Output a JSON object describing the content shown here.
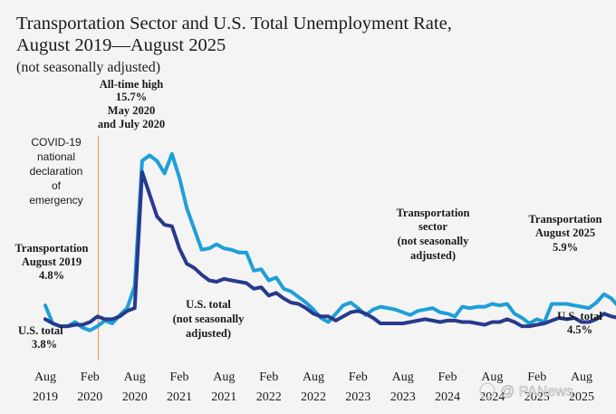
{
  "chart_data": {
    "type": "line",
    "title_lines": [
      "Transportation Sector and U.S. Total Unemployment Rate,",
      "August 2019—August 2025"
    ],
    "subtitle": "(not seasonally adjusted)",
    "x_start": "2019-08",
    "x_end": "2025-08",
    "x_ticks": [
      {
        "month": "Aug",
        "year": "2019"
      },
      {
        "month": "Feb",
        "year": "2020"
      },
      {
        "month": "Aug",
        "year": "2020"
      },
      {
        "month": "Feb",
        "year": "2021"
      },
      {
        "month": "Aug",
        "year": "2021"
      },
      {
        "month": "Feb",
        "year": "2022"
      },
      {
        "month": "Aug",
        "year": "2022"
      },
      {
        "month": "Feb",
        "year": "2023"
      },
      {
        "month": "Aug",
        "year": "2023"
      },
      {
        "month": "Feb",
        "year": "2024"
      },
      {
        "month": "Aug",
        "year": "2024"
      },
      {
        "month": "Feb",
        "year": "2025"
      },
      {
        "month": "Aug",
        "year": "2025"
      }
    ],
    "ylim": [
      2,
      17
    ],
    "grid": false,
    "series": [
      {
        "name": "Transportation sector (not seasonally adjusted)",
        "color": "#1e9fd8",
        "values": [
          4.8,
          3.5,
          3.3,
          3.3,
          3.6,
          3.2,
          3.0,
          3.3,
          3.7,
          3.5,
          4.1,
          4.6,
          6.2,
          15.2,
          15.6,
          15.2,
          14.3,
          15.7,
          14.0,
          11.8,
          10.3,
          8.8,
          8.9,
          9.2,
          8.9,
          8.8,
          8.6,
          8.6,
          7.3,
          7.4,
          6.6,
          6.8,
          6.0,
          5.8,
          5.4,
          5.0,
          4.5,
          3.9,
          3.6,
          4.2,
          4.8,
          5.0,
          4.6,
          4.1,
          4.5,
          4.7,
          4.6,
          4.5,
          4.3,
          4.1,
          4.4,
          4.5,
          4.6,
          4.3,
          4.2,
          4.0,
          4.7,
          4.6,
          4.7,
          4.7,
          4.9,
          4.8,
          4.9,
          4.2,
          3.9,
          3.5,
          3.8,
          3.6,
          4.9,
          4.9,
          4.9,
          4.8,
          4.7,
          4.6,
          5.0,
          5.6,
          5.3,
          4.7,
          4.8,
          5.0,
          4.4,
          5.1,
          5.0,
          5.4,
          4.8,
          4.6,
          4.7,
          4.6,
          4.3,
          4.0,
          4.4,
          4.6,
          3.7,
          4.2,
          4.5,
          4.7,
          4.6,
          4.6,
          5.1,
          5.2,
          5.9
        ]
      },
      {
        "name": "U.S. total (not seasonally adjusted)",
        "color": "#273a8c",
        "values": [
          3.8,
          3.5,
          3.3,
          3.3,
          3.4,
          3.4,
          3.6,
          4.0,
          3.8,
          3.8,
          4.0,
          4.4,
          4.6,
          14.4,
          12.8,
          11.2,
          10.6,
          10.5,
          8.9,
          7.8,
          7.5,
          7.0,
          6.6,
          6.5,
          6.7,
          6.6,
          6.5,
          6.4,
          6.0,
          6.1,
          5.5,
          5.7,
          5.3,
          5.0,
          4.9,
          4.6,
          4.2,
          4.0,
          4.0,
          3.7,
          4.0,
          4.3,
          4.4,
          4.2,
          3.9,
          3.5,
          3.5,
          3.5,
          3.5,
          3.6,
          3.7,
          3.8,
          3.7,
          3.6,
          3.7,
          3.7,
          3.6,
          3.6,
          3.5,
          3.4,
          3.6,
          3.6,
          3.8,
          3.6,
          3.3,
          3.3,
          3.4,
          3.5,
          3.7,
          3.9,
          3.8,
          3.9,
          3.6,
          3.6,
          3.8,
          4.2,
          4.0,
          3.9,
          3.6,
          3.5,
          3.7,
          4.0,
          4.3,
          4.5,
          4.4,
          4.1,
          4.1,
          4.1,
          4.0,
          3.8,
          4.2,
          4.4,
          3.9,
          4.1,
          4.2,
          4.4,
          4.4,
          4.5,
          4.4,
          4.6,
          4.5
        ]
      }
    ],
    "annotations": {
      "all_time_high": [
        "All-time high",
        "15.7%",
        "May 2020",
        "and July 2020"
      ],
      "covid": [
        "COVID-19",
        "national",
        "declaration",
        "of",
        "emergency"
      ],
      "transport_start": [
        "Transportation",
        "August 2019",
        "4.8%"
      ],
      "us_start": [
        "U.S. total",
        "3.8%"
      ],
      "us_mid": [
        "U.S. total",
        "(not seasonally",
        "adjusted)"
      ],
      "transport_mid": [
        "Transportation",
        "sector",
        "(not seasonally",
        "adjusted)"
      ],
      "transport_end": [
        "Transportation",
        "August 2025",
        "5.9%"
      ],
      "us_end": [
        "U.S. total",
        "4.5%"
      ]
    },
    "covid_marker_month": "2020-03",
    "covid_marker_color": "#f0a05a"
  },
  "watermark": "@ PANews"
}
